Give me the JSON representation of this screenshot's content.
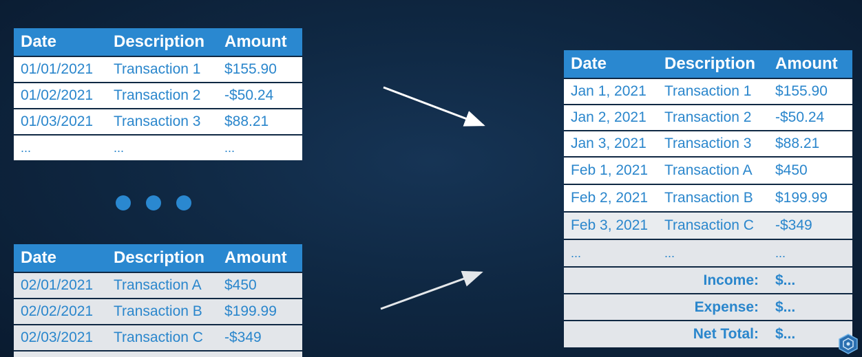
{
  "headers": {
    "date": "Date",
    "description": "Description",
    "amount": "Amount"
  },
  "table_jan": {
    "rows": [
      {
        "date": "01/01/2021",
        "desc": "Transaction 1",
        "amount": "$155.90"
      },
      {
        "date": "01/02/2021",
        "desc": "Transaction 2",
        "amount": "-$50.24"
      },
      {
        "date": "01/03/2021",
        "desc": "Transaction 3",
        "amount": "$88.21"
      }
    ],
    "ellipsis": "..."
  },
  "table_feb": {
    "rows": [
      {
        "date": "02/01/2021",
        "desc": "Transaction A",
        "amount": "$450"
      },
      {
        "date": "02/02/2021",
        "desc": "Transaction B",
        "amount": "$199.99"
      },
      {
        "date": "02/03/2021",
        "desc": "Transaction C",
        "amount": "-$349"
      }
    ]
  },
  "table_combined": {
    "rows": [
      {
        "date": "Jan 1, 2021",
        "desc": "Transaction 1",
        "amount": "$155.90"
      },
      {
        "date": "Jan 2, 2021",
        "desc": "Transaction 2",
        "amount": "-$50.24"
      },
      {
        "date": "Jan 3, 2021",
        "desc": "Transaction 3",
        "amount": "$88.21"
      },
      {
        "date": "Feb 1, 2021",
        "desc": "Transaction A",
        "amount": "$450"
      },
      {
        "date": "Feb 2, 2021",
        "desc": "Transaction B",
        "amount": "$199.99"
      },
      {
        "date": "Feb 3, 2021",
        "desc": "Transaction C",
        "amount": "-$349"
      }
    ],
    "ellipsis": "...",
    "summary": [
      {
        "label": "Income:",
        "value": "$..."
      },
      {
        "label": "Expense:",
        "value": "$..."
      },
      {
        "label": "Net Total:",
        "value": "$..."
      }
    ]
  },
  "colors": {
    "header_blue": "#2a88d0",
    "text_blue": "#2a86cc",
    "background": "#0f2843"
  },
  "icons": [
    "more-dots-icon",
    "arrow-right-down-icon",
    "arrow-right-up-icon",
    "hexagon-logo-icon"
  ]
}
